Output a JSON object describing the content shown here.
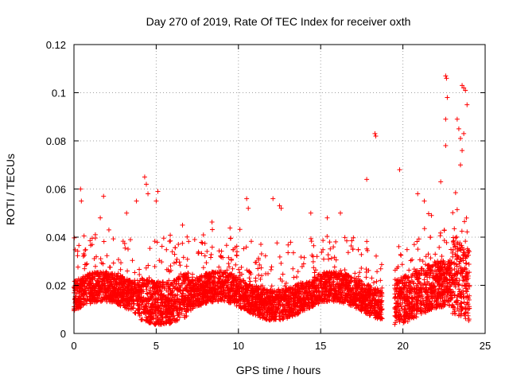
{
  "chart_data": {
    "type": "scatter",
    "title": "Day 270 of 2019, Rate Of TEC Index for receiver oxth",
    "xlabel": "GPS time / hours",
    "ylabel": "ROTI / TECUs",
    "xlim": [
      0,
      25
    ],
    "ylim": [
      0,
      0.12
    ],
    "xticks": [
      0,
      5,
      10,
      15,
      20,
      25
    ],
    "xtick_labels": [
      "0",
      "5",
      "10",
      "15",
      "20",
      "25"
    ],
    "yticks": [
      0,
      0.02,
      0.04,
      0.06,
      0.08,
      0.1,
      0.12
    ],
    "ytick_labels": [
      "0",
      "0.02",
      "0.04",
      "0.06",
      "0.08",
      "0.1",
      "0.12"
    ],
    "grid": true,
    "marker": "+",
    "marker_color": "#ff0000",
    "data_gaps_hours": [
      [
        18.75,
        19.5
      ]
    ],
    "series": [
      {
        "name": "ROTI",
        "notes_envelope": "dense band of points mostly 0.005-0.035 TECU/s from 0 to 24 h, with spikes",
        "highlight_points": [
          {
            "x": 0.4,
            "y": 0.06
          },
          {
            "x": 0.45,
            "y": 0.055
          },
          {
            "x": 1.6,
            "y": 0.048
          },
          {
            "x": 1.8,
            "y": 0.057
          },
          {
            "x": 3.2,
            "y": 0.05
          },
          {
            "x": 3.8,
            "y": 0.055
          },
          {
            "x": 4.3,
            "y": 0.065
          },
          {
            "x": 4.4,
            "y": 0.062
          },
          {
            "x": 4.5,
            "y": 0.058
          },
          {
            "x": 5.1,
            "y": 0.059
          },
          {
            "x": 5.0,
            "y": 0.055
          },
          {
            "x": 6.6,
            "y": 0.045
          },
          {
            "x": 10.5,
            "y": 0.056
          },
          {
            "x": 10.6,
            "y": 0.052
          },
          {
            "x": 12.1,
            "y": 0.056
          },
          {
            "x": 12.5,
            "y": 0.053
          },
          {
            "x": 12.6,
            "y": 0.052
          },
          {
            "x": 14.4,
            "y": 0.05
          },
          {
            "x": 15.4,
            "y": 0.048
          },
          {
            "x": 16.2,
            "y": 0.05
          },
          {
            "x": 17.8,
            "y": 0.064
          },
          {
            "x": 18.3,
            "y": 0.083
          },
          {
            "x": 18.35,
            "y": 0.082
          },
          {
            "x": 19.8,
            "y": 0.068
          },
          {
            "x": 20.9,
            "y": 0.058
          },
          {
            "x": 21.3,
            "y": 0.055
          },
          {
            "x": 22.3,
            "y": 0.063
          },
          {
            "x": 22.6,
            "y": 0.107
          },
          {
            "x": 22.65,
            "y": 0.106
          },
          {
            "x": 22.7,
            "y": 0.098
          },
          {
            "x": 22.6,
            "y": 0.089
          },
          {
            "x": 22.6,
            "y": 0.078
          },
          {
            "x": 23.3,
            "y": 0.089
          },
          {
            "x": 23.4,
            "y": 0.085
          },
          {
            "x": 23.5,
            "y": 0.081
          },
          {
            "x": 23.6,
            "y": 0.103
          },
          {
            "x": 23.7,
            "y": 0.102
          },
          {
            "x": 23.8,
            "y": 0.101
          },
          {
            "x": 23.9,
            "y": 0.095
          },
          {
            "x": 23.7,
            "y": 0.083
          },
          {
            "x": 23.6,
            "y": 0.076
          },
          {
            "x": 23.5,
            "y": 0.07
          }
        ]
      }
    ]
  }
}
